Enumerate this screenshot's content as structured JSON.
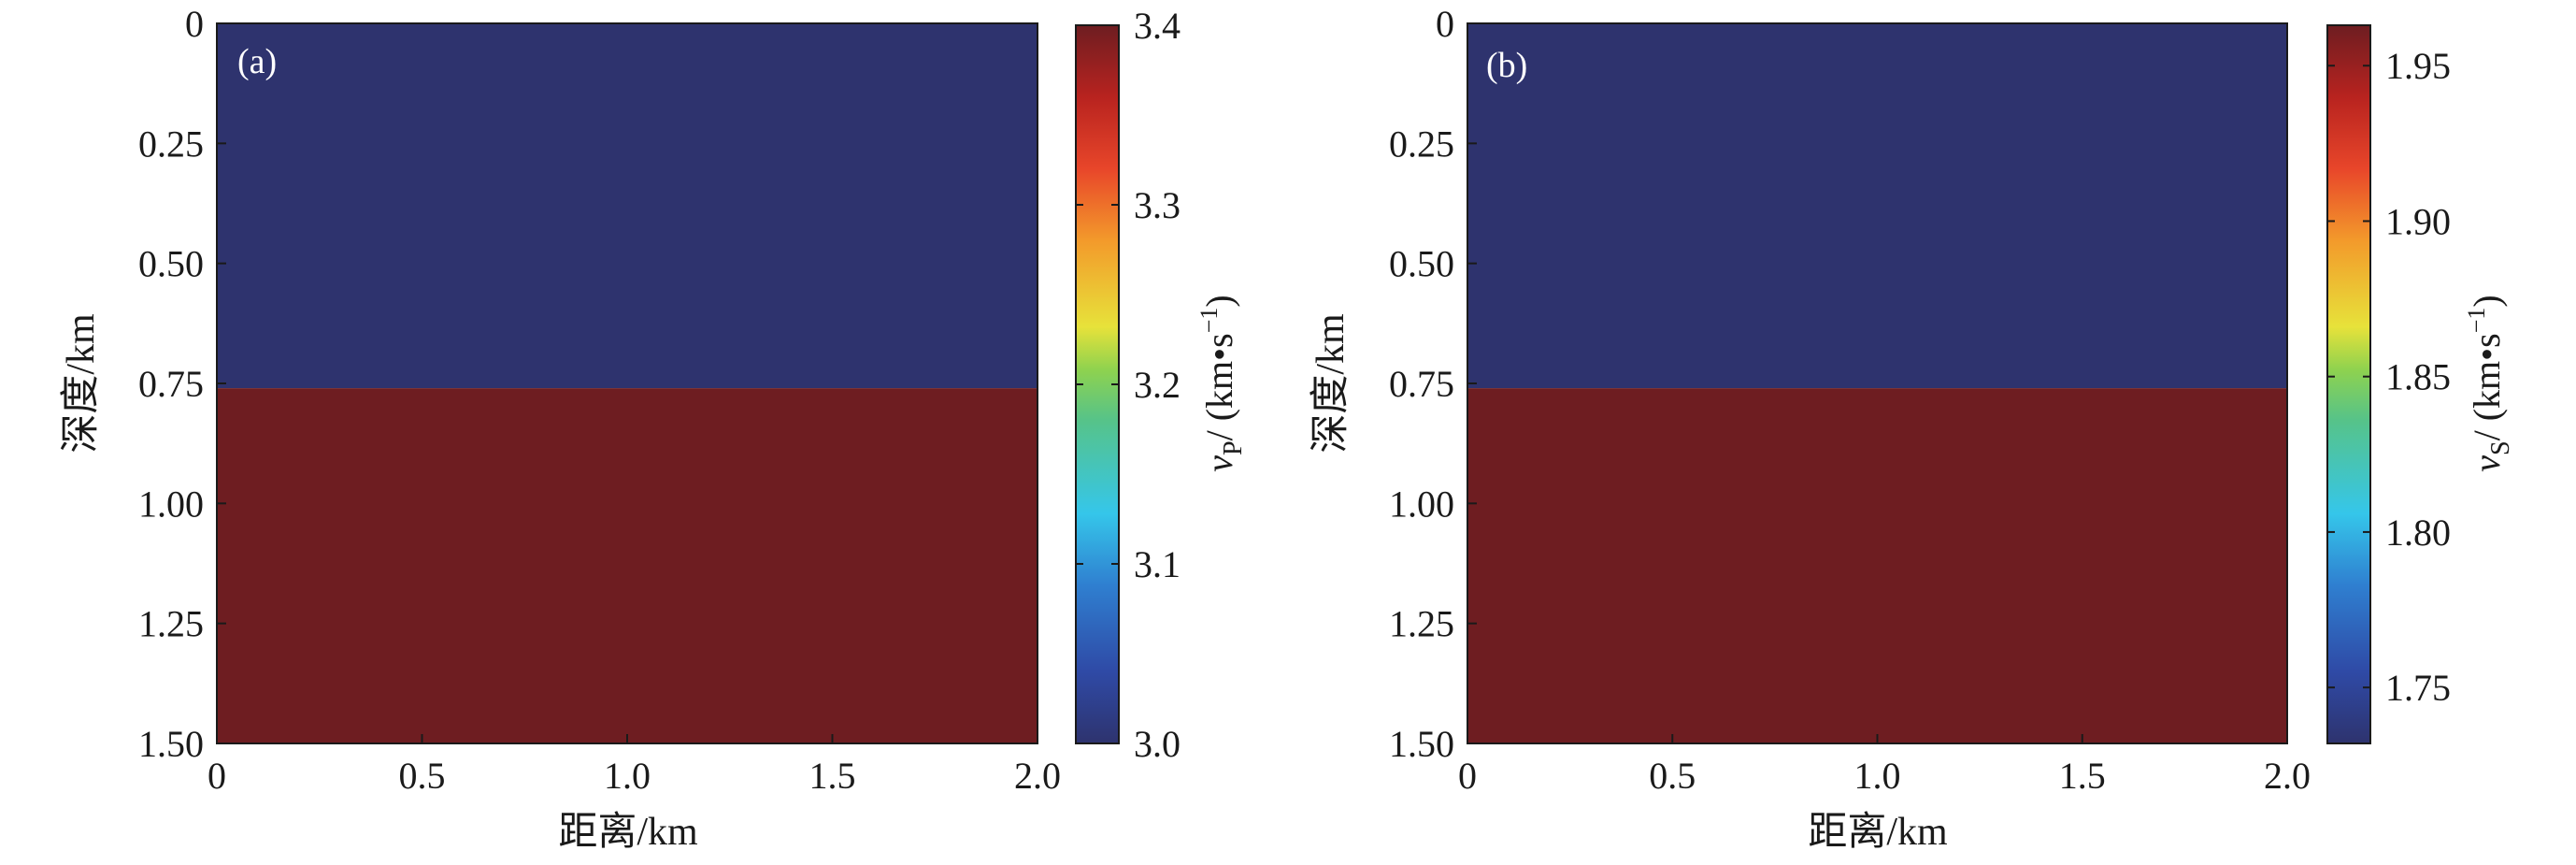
{
  "chart_data": [
    {
      "type": "heatmap",
      "panel_label": "(a)",
      "xlabel": "距离/km",
      "ylabel": "深度/km",
      "xlim": [
        0,
        2.0
      ],
      "ylim": [
        0,
        1.5
      ],
      "y_inverted": true,
      "x_ticks": [
        "0",
        "0.5",
        "1.0",
        "1.5",
        "2.0"
      ],
      "x_tick_values": [
        0,
        0.5,
        1.0,
        1.5,
        2.0
      ],
      "y_ticks": [
        "0",
        "0.25",
        "0.50",
        "0.75",
        "1.00",
        "1.25",
        "1.50"
      ],
      "y_tick_values": [
        0,
        0.25,
        0.5,
        0.75,
        1.0,
        1.25,
        1.5
      ],
      "layers": [
        {
          "depth_top": 0,
          "depth_bottom": 0.76,
          "value": 3.0
        },
        {
          "depth_top": 0.76,
          "depth_bottom": 1.5,
          "value": 3.4
        }
      ],
      "colorbar": {
        "label_var": "v",
        "label_sub": "P",
        "label_units": "/ (km•s",
        "label_exp": "−1",
        "label_close": ")",
        "min": 3.0,
        "max": 3.4,
        "ticks": [
          "3.0",
          "3.1",
          "3.2",
          "3.3",
          "3.4"
        ],
        "tick_values": [
          3.0,
          3.1,
          3.2,
          3.3,
          3.4
        ],
        "colormap": "jet-dark"
      }
    },
    {
      "type": "heatmap",
      "panel_label": "(b)",
      "xlabel": "距离/km",
      "ylabel": "深度/km",
      "xlim": [
        0,
        2.0
      ],
      "ylim": [
        0,
        1.5
      ],
      "y_inverted": true,
      "x_ticks": [
        "0",
        "0.5",
        "1.0",
        "1.5",
        "2.0"
      ],
      "x_tick_values": [
        0,
        0.5,
        1.0,
        1.5,
        2.0
      ],
      "y_ticks": [
        "0",
        "0.25",
        "0.50",
        "0.75",
        "1.00",
        "1.25",
        "1.50"
      ],
      "y_tick_values": [
        0,
        0.25,
        0.5,
        0.75,
        1.0,
        1.25,
        1.5
      ],
      "layers": [
        {
          "depth_top": 0,
          "depth_bottom": 0.76,
          "value": 1.732
        },
        {
          "depth_top": 0.76,
          "depth_bottom": 1.5,
          "value": 1.963
        }
      ],
      "colorbar": {
        "label_var": "v",
        "label_sub": "S",
        "label_units": "/ (km•s",
        "label_exp": "−1",
        "label_close": ")",
        "min": 1.732,
        "max": 1.963,
        "ticks": [
          "1.75",
          "1.80",
          "1.85",
          "1.90",
          "1.95"
        ],
        "tick_values": [
          1.75,
          1.8,
          1.85,
          1.9,
          1.95
        ],
        "colormap": "jet-dark"
      }
    }
  ],
  "colors": {
    "low": "#2e336e",
    "high": "#6e1d21",
    "frame": "#1a1a1a"
  }
}
